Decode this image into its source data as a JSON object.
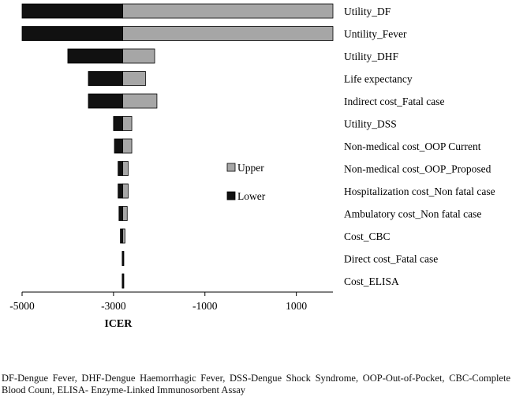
{
  "chart_data": {
    "type": "bar",
    "orientation": "horizontal",
    "subtype": "tornado",
    "baseline": -2800,
    "categories": [
      "Utility_DF",
      "Untility_Fever",
      "Utility_DHF",
      "Life expectancy",
      "Indirect cost_Fatal case",
      "Utility_DSS",
      "Non-medical cost_OOP Current",
      "Non-medical cost_OOP_Proposed",
      "Hospitalization cost_Non fatal case",
      "Ambulatory cost_Non fatal case",
      "Cost_CBC",
      "Direct cost_Fatal case",
      "Cost_ELISA"
    ],
    "series": [
      {
        "name": "Upper",
        "color": "#a6a6a6",
        "values": [
          1800,
          1800,
          -2100,
          -2300,
          -2050,
          -2600,
          -2600,
          -2680,
          -2680,
          -2700,
          -2750,
          -2790,
          -2790
        ]
      },
      {
        "name": "Lower",
        "color": "#111111",
        "values": [
          -5000,
          -5000,
          -4000,
          -3550,
          -3550,
          -3000,
          -2980,
          -2900,
          -2900,
          -2880,
          -2850,
          -2810,
          -2810
        ]
      }
    ],
    "xlabel": "ICER",
    "xlim": [
      -5000,
      1800
    ],
    "xticks": [
      -5000,
      -3000,
      -1000,
      1000
    ],
    "xtick_labels": [
      "-5000",
      "-3000",
      "-1000",
      "1000"
    ],
    "legend": "center",
    "grid": false
  },
  "footnote": "DF-Dengue Fever, DHF-Dengue Haemorrhagic Fever, DSS-Dengue Shock Syndrome, OOP-Out-of-Pocket, CBC-Complete Blood Count, ELISA- Enzyme-Linked Immunosorbent Assay"
}
